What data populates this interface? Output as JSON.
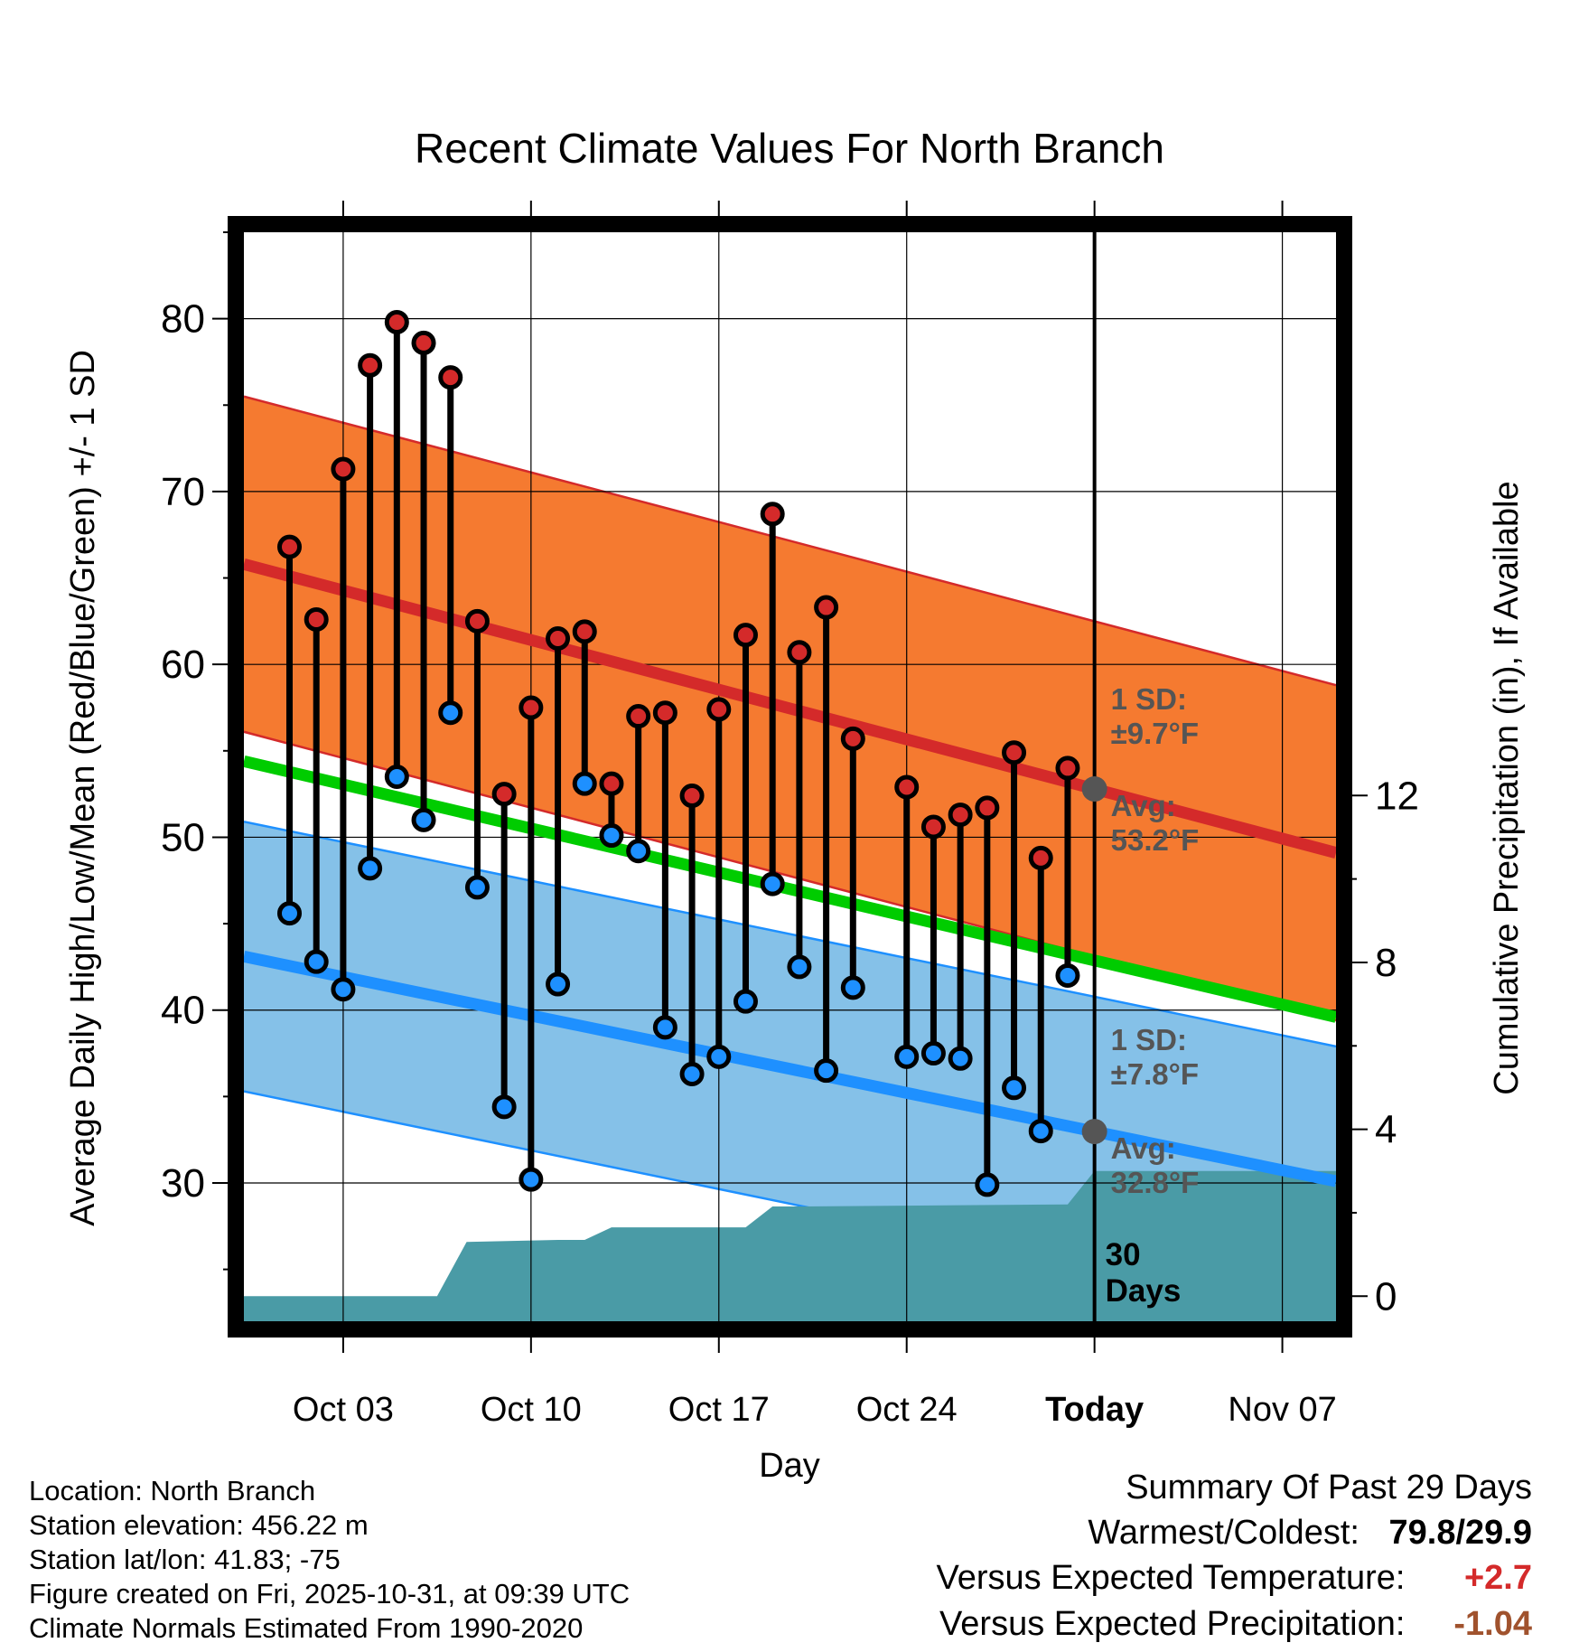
{
  "chart_data": {
    "type": "range-dot",
    "title": "Recent Climate Values For North Branch",
    "xlabel": "Day",
    "ylabel": "Average Daily High/Low/Mean (Red/Blue/Green) +/- 1 SD",
    "y2label": "Cumulative Precipitation (in), If Available",
    "ylim": [
      22,
      85
    ],
    "yticks": [
      30,
      40,
      50,
      60,
      70,
      80
    ],
    "y2lim": [
      -0.6,
      25.5
    ],
    "y2ticks": [
      0,
      4,
      8,
      12
    ],
    "xlim": [
      -0.7,
      40.0
    ],
    "xticks": [
      {
        "day": 3,
        "label": "Oct 03"
      },
      {
        "day": 10,
        "label": "Oct 10"
      },
      {
        "day": 17,
        "label": "Oct 17"
      },
      {
        "day": 24,
        "label": "Oct 24"
      },
      {
        "day": 31,
        "label": "Today"
      },
      {
        "day": 38,
        "label": "Nov 07"
      }
    ],
    "days": [
      1,
      2,
      3,
      4,
      5,
      6,
      7,
      8,
      9,
      10,
      11,
      12,
      13,
      14,
      15,
      16,
      17,
      18,
      19,
      20,
      21,
      22,
      24,
      25,
      26,
      27,
      28,
      29,
      30
    ],
    "highs": [
      66.8,
      62.6,
      71.3,
      77.3,
      79.8,
      78.6,
      76.6,
      62.5,
      52.5,
      57.5,
      61.5,
      61.9,
      53.1,
      57.0,
      57.2,
      52.4,
      57.4,
      61.7,
      68.7,
      60.7,
      63.3,
      55.7,
      52.9,
      50.6,
      51.3,
      51.7,
      54.9,
      48.8,
      54.0
    ],
    "lows": [
      45.6,
      42.8,
      41.2,
      48.2,
      53.5,
      51.0,
      57.2,
      47.1,
      34.4,
      30.2,
      41.5,
      53.1,
      50.1,
      49.2,
      39.0,
      36.3,
      37.3,
      40.5,
      47.3,
      42.5,
      36.5,
      41.3,
      37.3,
      37.5,
      37.2,
      29.9,
      35.5,
      33.0,
      42.0
    ],
    "normal_high": {
      "start_day": -0.7,
      "start": 65.8,
      "end_day": 40.0,
      "end": 49.1,
      "sd": 9.7
    },
    "normal_low": {
      "start_day": -0.7,
      "start": 43.1,
      "end_day": 40.0,
      "end": 30.1,
      "sd": 7.8
    },
    "normal_mean": {
      "start_day": -0.7,
      "start": 54.4,
      "end_day": 40.0,
      "end": 39.6
    },
    "precip": {
      "days": [
        -0.7,
        6.5,
        7.6,
        11.0,
        12.0,
        13.0,
        18.0,
        19.0,
        20.0,
        30.0,
        31.0,
        40.0
      ],
      "values": [
        0.0,
        0.0,
        1.3,
        1.35,
        1.35,
        1.65,
        1.65,
        2.15,
        2.15,
        2.2,
        3.0,
        3.0
      ]
    },
    "today_day": 31,
    "annotations": {
      "high_sd": "1 SD:",
      "high_sd_val": "±9.7°F",
      "high_avg": "Avg:",
      "high_avg_val": "53.2°F",
      "low_sd": "1 SD:",
      "low_sd_val": "±7.8°F",
      "low_avg": "Avg:",
      "low_avg_val": "32.8°F",
      "window_num": "30",
      "window_unit": "Days"
    },
    "colors": {
      "high_band": "#f57a30",
      "high_line": "#d42a2a",
      "low_band": "#85c1e8",
      "low_line": "#1e90ff",
      "mean_line": "#00cc00",
      "precip": "#4a9ba6",
      "high_dot": "#d42a2a",
      "low_dot": "#1e90ff",
      "annot": "#555555"
    }
  },
  "footer": {
    "location": "Location: North Branch",
    "elevation": "Station elevation: 456.22 m",
    "latlon": "Station lat/lon: 41.83; -75",
    "created": "Figure created on Fri, 2025-10-31, at 09:39 UTC",
    "normals": "Climate Normals Estimated From 1990-2020"
  },
  "summary": {
    "title": "Summary Of Past 29 Days",
    "warm_cold_label": "Warmest/Coldest:",
    "warm_cold_value": "79.8/29.9",
    "temp_label": "Versus Expected Temperature:",
    "temp_value": "+2.7",
    "temp_color": "#d42a2a",
    "precip_label": "Versus Expected Precipitation:",
    "precip_value": "-1.04",
    "precip_color": "#a0522d"
  }
}
